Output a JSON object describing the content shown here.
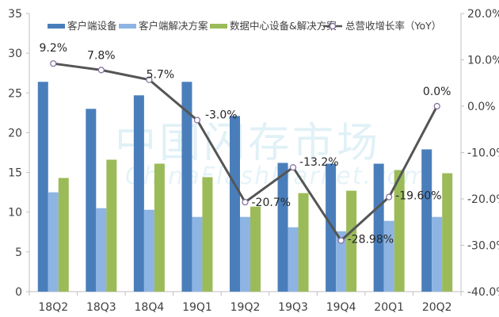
{
  "colors": {
    "series": [
      "#4a7ebb",
      "#8eb4e3",
      "#9bbb59"
    ],
    "line": "#555555",
    "axis": "#bfbfbf"
  },
  "watermark": {
    "cn": "中国闪存市场",
    "en": "ChinaFlashMarket.com"
  },
  "chart_data": {
    "type": "bar",
    "categories": [
      "18Q2",
      "18Q3",
      "18Q4",
      "19Q1",
      "19Q2",
      "19Q3",
      "19Q4",
      "20Q1",
      "20Q2"
    ],
    "series": [
      {
        "name": "客户端设备",
        "values": [
          26.4,
          23.0,
          24.7,
          26.4,
          22.1,
          16.2,
          16.1,
          16.1,
          17.9
        ]
      },
      {
        "name": "客户端解决方案",
        "values": [
          12.5,
          10.5,
          10.3,
          9.4,
          9.4,
          8.1,
          7.6,
          8.9,
          9.4
        ]
      },
      {
        "name": "数据中心设备&解决方案",
        "values": [
          14.3,
          16.6,
          16.1,
          14.4,
          10.7,
          12.4,
          12.7,
          15.3,
          14.9
        ]
      }
    ],
    "line_series": {
      "name": "总营收增长率（YoY）",
      "values": [
        9.2,
        7.8,
        5.7,
        -3.0,
        -20.7,
        -13.2,
        -28.98,
        -19.6,
        0.0
      ],
      "labels": [
        "9.2%",
        "7.8%",
        "5.7%",
        "-3.0%",
        "-20.7%",
        "-13.2%",
        "-28.98%",
        "-19.60%",
        "0.0%"
      ]
    },
    "ylim": [
      0,
      35
    ],
    "yticks": [
      0,
      5,
      10,
      15,
      20,
      25,
      30,
      35
    ],
    "ylabels": [
      "0",
      "5",
      "10",
      "15",
      "20",
      "25",
      "30",
      "35"
    ],
    "y2lim": [
      -40,
      20
    ],
    "y2ticks": [
      -40,
      -30,
      -20,
      -10,
      0,
      10,
      20
    ],
    "y2labels": [
      "-40.0%",
      "-30.0%",
      "-20.0%",
      "-10.0%",
      "0.0%",
      "10.0%",
      "20.0%"
    ],
    "legend_position": "top",
    "grid": false
  }
}
